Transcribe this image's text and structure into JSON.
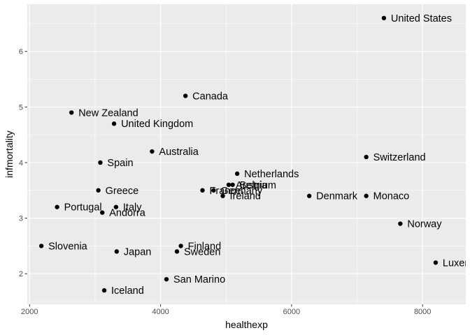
{
  "chart_data": {
    "type": "scatter",
    "title": "",
    "xlabel": "healthexp",
    "ylabel": "infmortality",
    "xlim": [
      1965,
      8660
    ],
    "ylim": [
      1.45,
      6.85
    ],
    "xticks": [
      2000,
      4000,
      6000,
      8000
    ],
    "yticks": [
      2,
      3,
      4,
      5,
      6
    ],
    "grid": true,
    "panel_background": "#ebebeb",
    "grid_color": "#ffffff",
    "point_color": "#000000",
    "points": [
      {
        "label": "United States",
        "x": 7410,
        "y": 6.6
      },
      {
        "label": "Canada",
        "x": 4380,
        "y": 5.2
      },
      {
        "label": "New Zealand",
        "x": 2640,
        "y": 4.9
      },
      {
        "label": "United Kingdom",
        "x": 3290,
        "y": 4.7
      },
      {
        "label": "Australia",
        "x": 3870,
        "y": 4.2
      },
      {
        "label": "Spain",
        "x": 3080,
        "y": 4.0
      },
      {
        "label": "Switzerland",
        "x": 7140,
        "y": 4.1
      },
      {
        "label": "Netherlands",
        "x": 5170,
        "y": 3.8
      },
      {
        "label": "Austria",
        "x": 5040,
        "y": 3.6
      },
      {
        "label": "Belgium",
        "x": 5100,
        "y": 3.6
      },
      {
        "label": "Greece",
        "x": 3050,
        "y": 3.5
      },
      {
        "label": "Germany",
        "x": 4810,
        "y": 3.5
      },
      {
        "label": "France",
        "x": 4640,
        "y": 3.5
      },
      {
        "label": "Ireland",
        "x": 4950,
        "y": 3.4
      },
      {
        "label": "Denmark",
        "x": 6270,
        "y": 3.4
      },
      {
        "label": "Monaco",
        "x": 7140,
        "y": 3.4
      },
      {
        "label": "Portugal",
        "x": 2420,
        "y": 3.2
      },
      {
        "label": "Italy",
        "x": 3320,
        "y": 3.2
      },
      {
        "label": "Andorra",
        "x": 3110,
        "y": 3.1
      },
      {
        "label": "Norway",
        "x": 7660,
        "y": 2.9
      },
      {
        "label": "Slovenia",
        "x": 2180,
        "y": 2.5
      },
      {
        "label": "Finland",
        "x": 4310,
        "y": 2.5
      },
      {
        "label": "Sweden",
        "x": 4250,
        "y": 2.4
      },
      {
        "label": "Japan",
        "x": 3330,
        "y": 2.4
      },
      {
        "label": "Luxembourg",
        "x": 8200,
        "y": 2.2
      },
      {
        "label": "San Marino",
        "x": 4090,
        "y": 1.9
      },
      {
        "label": "Iceland",
        "x": 3140,
        "y": 1.7
      }
    ]
  }
}
